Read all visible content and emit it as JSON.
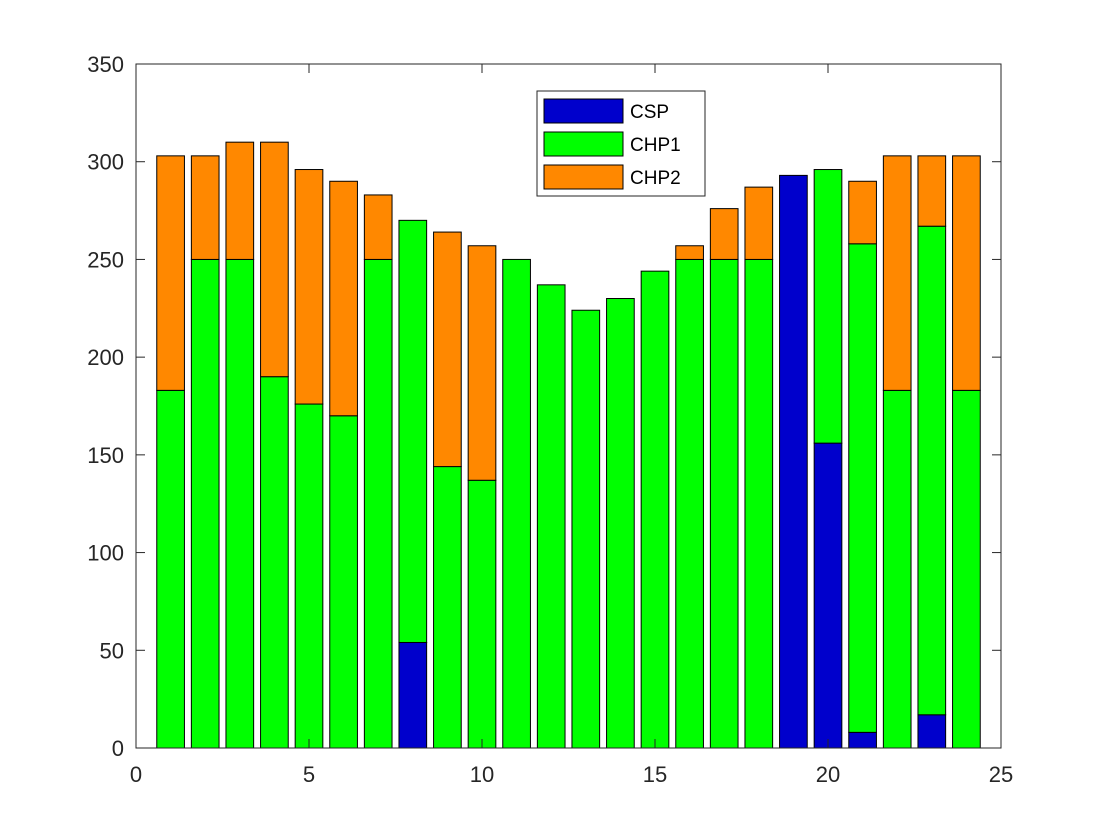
{
  "chart_data": {
    "type": "bar",
    "stacked": true,
    "x": [
      1,
      2,
      3,
      4,
      5,
      6,
      7,
      8,
      9,
      10,
      11,
      12,
      13,
      14,
      15,
      16,
      17,
      18,
      19,
      20,
      21,
      22,
      23,
      24
    ],
    "series": [
      {
        "name": "CSP",
        "color": "#0000CC",
        "values": [
          0,
          0,
          0,
          0,
          0,
          0,
          0,
          54,
          0,
          0,
          0,
          0,
          0,
          0,
          0,
          0,
          0,
          0,
          293,
          156,
          8,
          0,
          17,
          0
        ]
      },
      {
        "name": "CHP1",
        "color": "#00FF00",
        "values": [
          183,
          250,
          250,
          190,
          176,
          170,
          250,
          216,
          144,
          137,
          250,
          237,
          224,
          230,
          244,
          250,
          250,
          250,
          0,
          140,
          250,
          183,
          250,
          183
        ]
      },
      {
        "name": "CHP2",
        "color": "#FF8800",
        "values": [
          120,
          53,
          60,
          120,
          120,
          120,
          33,
          0,
          120,
          120,
          0,
          0,
          0,
          0,
          0,
          7,
          26,
          37,
          0,
          0,
          32,
          120,
          36,
          120
        ]
      }
    ],
    "xlim": [
      0,
      25
    ],
    "ylim": [
      0,
      350
    ],
    "xticks": [
      0,
      5,
      10,
      15,
      20,
      25
    ],
    "yticks": [
      0,
      50,
      100,
      150,
      200,
      250,
      300,
      350
    ],
    "title": "",
    "xlabel": "",
    "ylabel": "",
    "grid": false,
    "legend_position": "top-center"
  }
}
